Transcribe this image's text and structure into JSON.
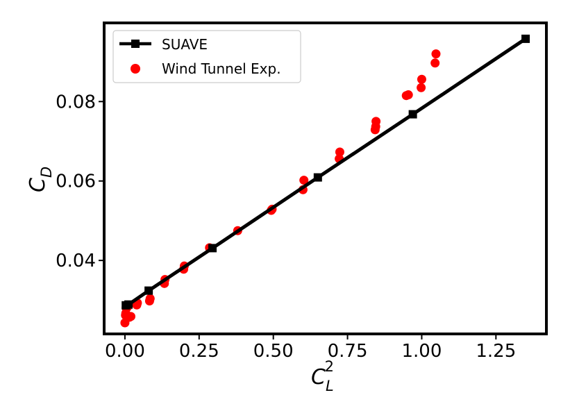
{
  "chart_data": {
    "type": "scatter",
    "xlabel": "C_L^2",
    "xlabel_main": "C",
    "xlabel_sub": "L",
    "xlabel_sup": "2",
    "ylabel": "C_D",
    "ylabel_main": "C",
    "ylabel_sub": "D",
    "xlim": [
      -0.07,
      1.42
    ],
    "ylim": [
      0.0215,
      0.0998
    ],
    "xticks": [
      0.0,
      0.25,
      0.5,
      0.75,
      1.0,
      1.25
    ],
    "xtick_labels": [
      "0.00",
      "0.25",
      "0.50",
      "0.75",
      "1.00",
      "1.25"
    ],
    "yticks": [
      0.04,
      0.06,
      0.08
    ],
    "ytick_labels": [
      "0.04",
      "0.06",
      "0.08"
    ],
    "grid": false,
    "legend_position": "top-left",
    "series": [
      {
        "name": "SUAVE",
        "kind": "line",
        "marker": "square",
        "color": "#000000",
        "x": [
          0.003,
          0.012,
          0.08,
          0.295,
          0.65,
          0.97,
          1.35
        ],
        "y": [
          0.0287,
          0.0289,
          0.0324,
          0.0431,
          0.0609,
          0.0768,
          0.0958
        ]
      },
      {
        "name": "Wind Tunnel Exp.",
        "kind": "scatter",
        "marker": "circle",
        "color": "#ff0000",
        "x": [
          0.0,
          0.002,
          0.003,
          0.004,
          0.008,
          0.012,
          0.015,
          0.02,
          0.04,
          0.042,
          0.083,
          0.085,
          0.133,
          0.135,
          0.198,
          0.2,
          0.285,
          0.38,
          0.493,
          0.496,
          0.6,
          0.603,
          0.722,
          0.724,
          0.843,
          0.845,
          0.846,
          0.948,
          0.955,
          0.998,
          1.0,
          1.045,
          1.048
        ],
        "y": [
          0.0243,
          0.0262,
          0.0267,
          0.0281,
          0.0282,
          0.0258,
          0.0257,
          0.0259,
          0.0288,
          0.0293,
          0.0298,
          0.0304,
          0.0342,
          0.0352,
          0.0378,
          0.0386,
          0.0432,
          0.0475,
          0.0526,
          0.0529,
          0.0578,
          0.0602,
          0.0656,
          0.0673,
          0.0729,
          0.0737,
          0.075,
          0.0815,
          0.0817,
          0.0835,
          0.0856,
          0.0897,
          0.092
        ]
      }
    ]
  }
}
